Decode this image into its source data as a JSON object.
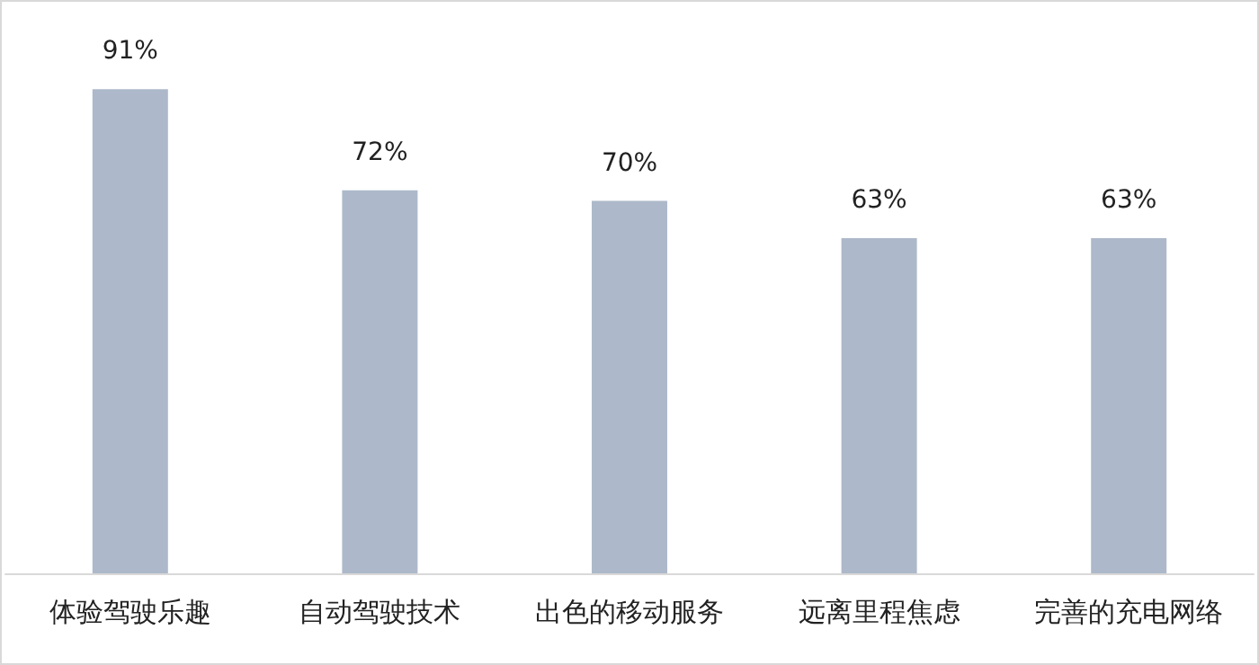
{
  "chart_data": {
    "type": "bar",
    "categories": [
      "体验驾驶乐趣",
      "自动驾驶技术",
      "出色的移动服务",
      "远离里程焦虑",
      "完善的充电网络"
    ],
    "values": [
      91,
      72,
      70,
      63,
      63
    ],
    "value_labels": [
      "91%",
      "72%",
      "70%",
      "63%",
      "63%"
    ],
    "color": "#adb9ca"
  }
}
